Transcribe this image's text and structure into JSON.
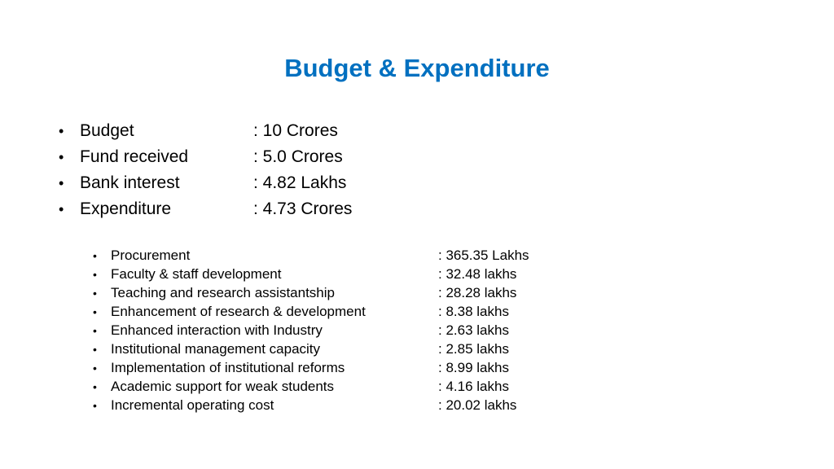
{
  "slide": {
    "title": "Budget & Expenditure",
    "bullet_glyph": "•",
    "summary": [
      {
        "label": "Budget",
        "value": ": 10 Crores"
      },
      {
        "label": "Fund received",
        "value": ": 5.0 Crores"
      },
      {
        "label": "Bank interest",
        "value": ": 4.82 Lakhs"
      },
      {
        "label": "Expenditure",
        "value": ": 4.73 Crores"
      }
    ],
    "expenditure_breakdown": [
      {
        "label": "Procurement",
        "value": ": 365.35 Lakhs"
      },
      {
        "label": "Faculty & staff development",
        "value": ": 32.48 lakhs"
      },
      {
        "label": "Teaching and research assistantship",
        "value": ": 28.28 lakhs"
      },
      {
        "label": "Enhancement of research & development",
        "value": ": 8.38 lakhs"
      },
      {
        "label": "Enhanced interaction with Industry",
        "value": ": 2.63 lakhs"
      },
      {
        "label": "Institutional management capacity",
        "value": ": 2.85 lakhs"
      },
      {
        "label": "Implementation of institutional reforms",
        "value": ": 8.99 lakhs"
      },
      {
        "label": "Academic support for weak students",
        "value": ": 4.16 lakhs"
      },
      {
        "label": "Incremental operating cost",
        "value": ": 20.02 lakhs"
      }
    ],
    "colors": {
      "title": "#0070c0",
      "text": "#000000",
      "background": "#ffffff"
    }
  }
}
